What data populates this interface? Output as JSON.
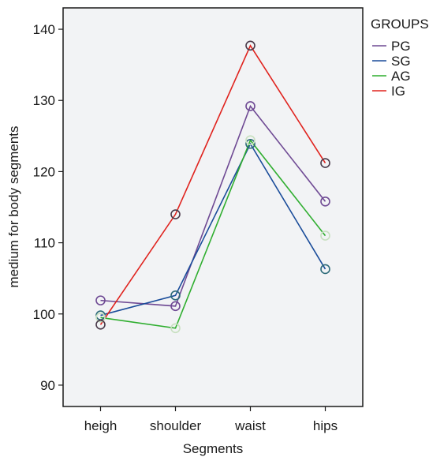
{
  "chart_data": {
    "type": "line",
    "categories": [
      "heigh",
      "shoulder",
      "waist",
      "hips"
    ],
    "series": [
      {
        "name": "PG",
        "values": [
          101.9,
          101.1,
          129.2,
          115.8
        ],
        "color": "#6f4a94"
      },
      {
        "name": "SG",
        "values": [
          99.8,
          102.6,
          123.9,
          106.3
        ],
        "color": "#1a4c9a"
      },
      {
        "name": "AG",
        "values": [
          99.5,
          98.0,
          124.4,
          111.0
        ],
        "color": "#2fae2f"
      },
      {
        "name": "IG",
        "values": [
          98.5,
          114.0,
          137.7,
          121.2
        ],
        "color": "#e0231e"
      }
    ],
    "marker_colors": {
      "PG": "#6f4a94",
      "SG": "#2e6b7a",
      "AG": "#c8e0c0",
      "IG": "#4a3a4a"
    },
    "title": "",
    "xlabel": "Segments",
    "ylabel": "medium for body segments",
    "ylim": [
      87,
      143
    ],
    "yticks": [
      90,
      100,
      110,
      120,
      130,
      140
    ],
    "legend": {
      "title": "GROUPS",
      "position": "right"
    },
    "grid": false,
    "plot_background": "#f2f3f5"
  }
}
